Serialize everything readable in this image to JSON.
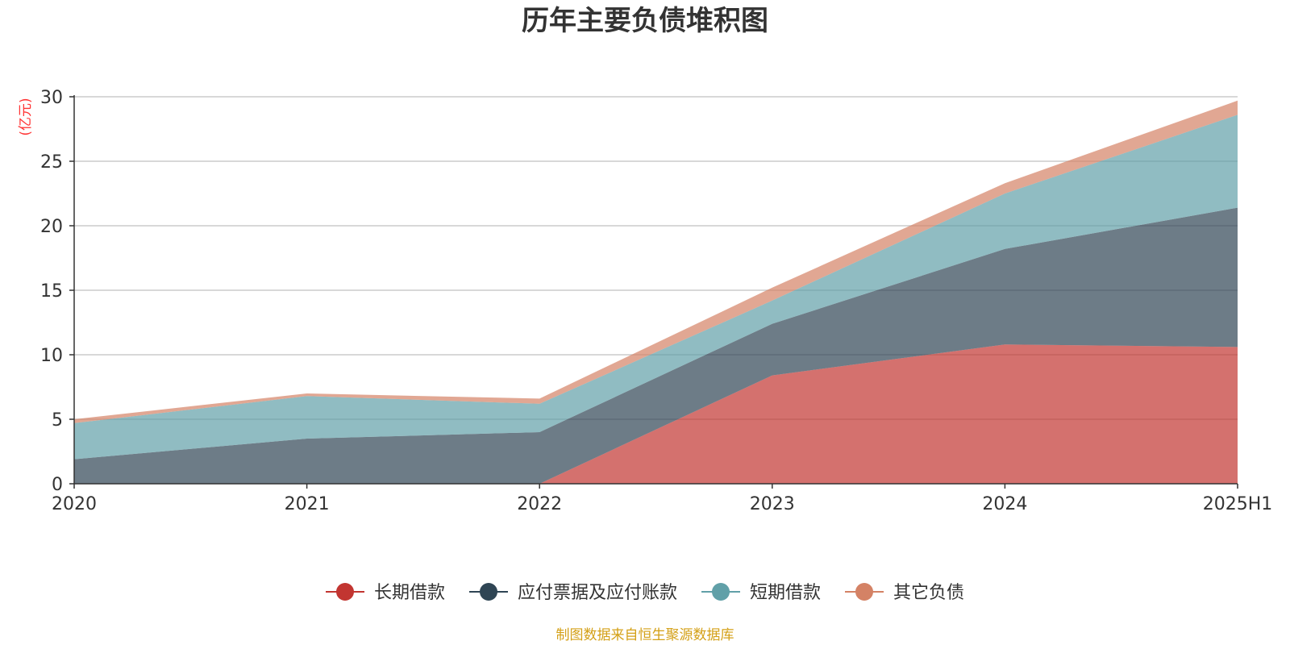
{
  "chart_data": {
    "type": "area",
    "stacked": true,
    "title": "历年主要负债堆积图",
    "ylabel": "(亿元)",
    "xlabel": "",
    "categories": [
      "2020",
      "2021",
      "2022",
      "2023",
      "2024",
      "2025H1"
    ],
    "ylim": [
      0,
      30
    ],
    "yticks": [
      0,
      5,
      10,
      15,
      20,
      25,
      30
    ],
    "grid": true,
    "legend_position": "bottom",
    "series": [
      {
        "name": "长期借款",
        "color": "#c23531",
        "values": [
          0,
          0,
          0,
          8.4,
          10.8,
          10.6
        ]
      },
      {
        "name": "应付票据及应付账款",
        "color": "#2f4554",
        "values": [
          1.9,
          3.5,
          4.0,
          4.0,
          7.4,
          10.8
        ]
      },
      {
        "name": "短期借款",
        "color": "#61a0a8",
        "values": [
          2.8,
          3.3,
          2.2,
          1.8,
          4.3,
          7.2
        ]
      },
      {
        "name": "其它负债",
        "color": "#d48265",
        "values": [
          0.3,
          0.2,
          0.4,
          1.0,
          0.8,
          1.1
        ]
      }
    ]
  },
  "source_note": "制图数据来自恒生聚源数据库",
  "colors": {
    "title": "#333333",
    "axis": "#333333",
    "grid": "#cccccc",
    "ylabel": "#ff3333",
    "source_note": "#d4a017"
  }
}
